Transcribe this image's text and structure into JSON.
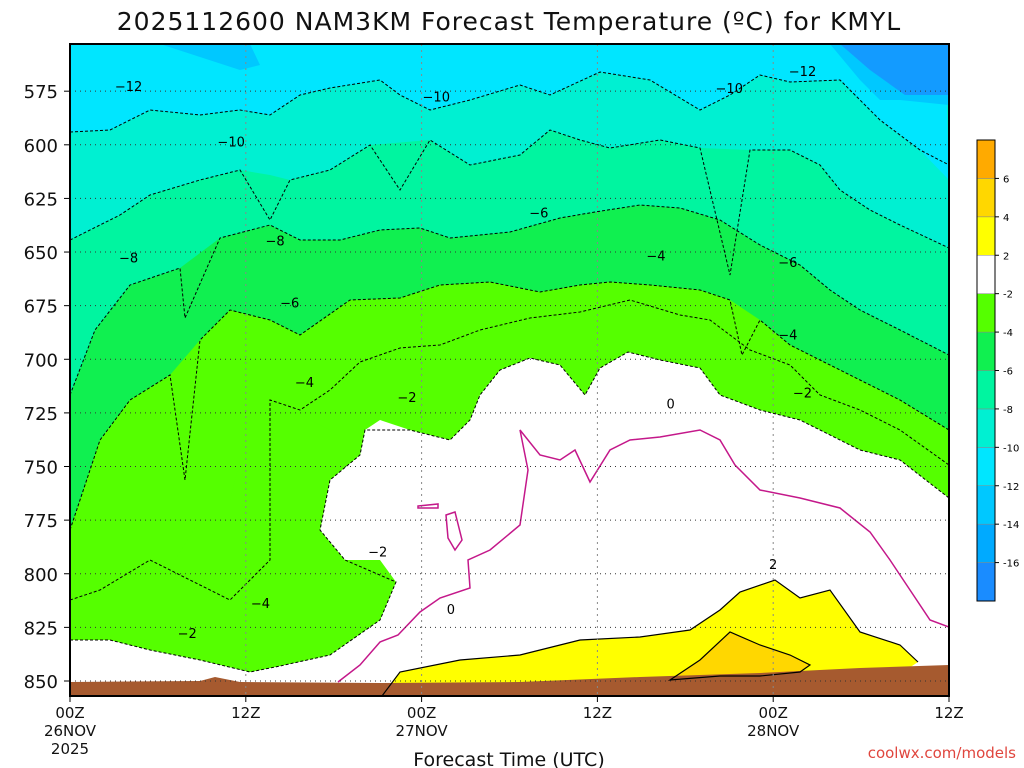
{
  "chart_data": {
    "type": "contour",
    "title": "2025112600 NAM3KM Forecast Temperature (ºC) for KMYL",
    "xlabel": "Forecast Time (UTC)",
    "ylabel": "",
    "credit": "coolwx.com/models",
    "x_ticks": [
      {
        "hours": 0,
        "line1": "00Z",
        "line2": "26NOV",
        "line3": "2025"
      },
      {
        "hours": 12,
        "line1": "12Z",
        "line2": "",
        "line3": ""
      },
      {
        "hours": 24,
        "line1": "00Z",
        "line2": "27NOV",
        "line3": ""
      },
      {
        "hours": 36,
        "line1": "12Z",
        "line2": "",
        "line3": ""
      },
      {
        "hours": 48,
        "line1": "00Z",
        "line2": "28NOV",
        "line3": ""
      },
      {
        "hours": 60,
        "line1": "12Z",
        "line2": "",
        "line3": ""
      }
    ],
    "xlim": [
      0,
      60
    ],
    "y_ticks": [
      575,
      600,
      625,
      650,
      675,
      700,
      725,
      750,
      775,
      800,
      825,
      850
    ],
    "ylim_hPa": [
      553,
      857
    ],
    "colorbar": {
      "levels": [
        -18,
        -16,
        -14,
        -12,
        -10,
        -8,
        -6,
        -4,
        -2,
        2,
        4,
        6,
        8
      ],
      "labels": [
        "-16",
        "-14",
        "-12",
        "-10",
        "-8",
        "-6",
        "-4",
        "-2",
        "2",
        "4",
        "6"
      ],
      "colors": [
        "#1a8cff",
        "#00aaff",
        "#00c8ff",
        "#00e6ff",
        "#00f0d2",
        "#00f5a0",
        "#10f050",
        "#55ff00",
        "#ffffff",
        "#ffff00",
        "#ffd700",
        "#ffaa00"
      ]
    },
    "contours": [
      {
        "value": -12,
        "label": "−12",
        "type": "dashed"
      },
      {
        "value": -10,
        "label": "−10",
        "type": "dashed"
      },
      {
        "value": -8,
        "label": "−8",
        "type": "dashed"
      },
      {
        "value": -6,
        "label": "−6",
        "type": "dashed"
      },
      {
        "value": -4,
        "label": "−4",
        "type": "dashed"
      },
      {
        "value": -2,
        "label": "−2",
        "type": "dashed"
      },
      {
        "value": 0,
        "label": "0",
        "type": "magenta"
      },
      {
        "value": 2,
        "label": "2",
        "type": "solid"
      }
    ],
    "contour_labels": [
      {
        "text": "−12",
        "hours": 4,
        "hPa": 573
      },
      {
        "text": "−12",
        "hours": 50,
        "hPa": 566
      },
      {
        "text": "−10",
        "hours": 11,
        "hPa": 599
      },
      {
        "text": "−10",
        "hours": 25,
        "hPa": 578
      },
      {
        "text": "−10",
        "hours": 45,
        "hPa": 574
      },
      {
        "text": "−8",
        "hours": 4,
        "hPa": 653
      },
      {
        "text": "−8",
        "hours": 14,
        "hPa": 645
      },
      {
        "text": "−6",
        "hours": 15,
        "hPa": 674
      },
      {
        "text": "−6",
        "hours": 32,
        "hPa": 632
      },
      {
        "text": "−6",
        "hours": 49,
        "hPa": 655
      },
      {
        "text": "−4",
        "hours": 16,
        "hPa": 711
      },
      {
        "text": "−4",
        "hours": 40,
        "hPa": 652
      },
      {
        "text": "−4",
        "hours": 49,
        "hPa": 689
      },
      {
        "text": "−4",
        "hours": 13,
        "hPa": 814
      },
      {
        "text": "−2",
        "hours": 23,
        "hPa": 718
      },
      {
        "text": "−2",
        "hours": 21,
        "hPa": 790
      },
      {
        "text": "−2",
        "hours": 8,
        "hPa": 828
      },
      {
        "text": "−2",
        "hours": 50,
        "hPa": 716
      },
      {
        "text": "0",
        "hours": 41,
        "hPa": 721
      },
      {
        "text": "0",
        "hours": 26,
        "hPa": 817
      },
      {
        "text": "2",
        "hours": 48,
        "hPa": 796
      }
    ]
  }
}
